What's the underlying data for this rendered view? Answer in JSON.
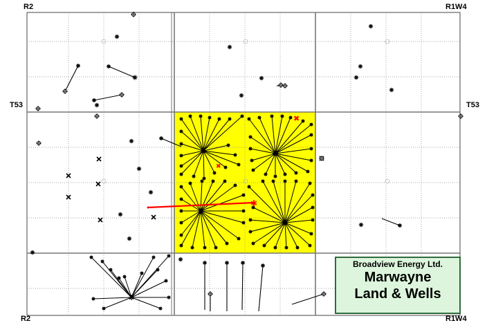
{
  "labels": {
    "range_left": "R2",
    "range_right": "R1W4",
    "township_left": "T53",
    "township_right": "T53"
  },
  "legend": {
    "company": "Broadview Energy Ltd.",
    "title_line1": "Marwayne",
    "title_line2": "Land & Wells"
  },
  "colors": {
    "land_parcel": "#ffff00",
    "wells": "#000000",
    "highlight_well": "#ff0000",
    "legend_bg": "#dcf5dc",
    "legend_border": "#2e6b3a"
  }
}
